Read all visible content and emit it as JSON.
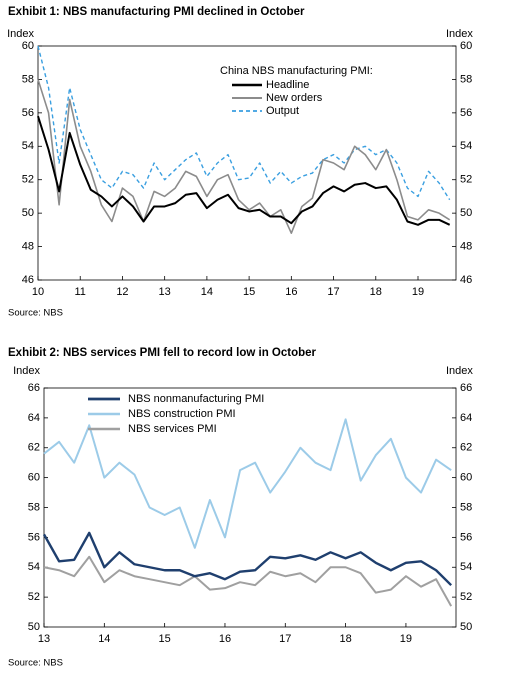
{
  "chart_data": [
    {
      "type": "line",
      "title": "Exhibit 1: NBS manufacturing PMI declined in October",
      "source": "Source: NBS",
      "y_label": "Index",
      "y2_label": "Index",
      "legend_title": "China NBS manufacturing PMI:",
      "x": [
        10,
        10.25,
        10.5,
        10.75,
        11,
        11.25,
        11.5,
        11.75,
        12,
        12.25,
        12.5,
        12.75,
        13,
        13.25,
        13.5,
        13.75,
        14,
        14.25,
        14.5,
        14.75,
        15,
        15.25,
        15.5,
        15.75,
        16,
        16.25,
        16.5,
        16.75,
        17,
        17.25,
        17.5,
        17.75,
        18,
        18.25,
        18.5,
        18.75,
        19,
        19.25,
        19.5,
        19.75
      ],
      "xlim": [
        10,
        19.9
      ],
      "xticks": [
        10,
        11,
        12,
        13,
        14,
        15,
        16,
        17,
        18,
        19
      ],
      "ylim": [
        46,
        60
      ],
      "yticks": [
        46,
        48,
        50,
        52,
        54,
        56,
        58,
        60
      ],
      "y2lim": [
        46,
        60
      ],
      "y2ticks": [
        46,
        48,
        50,
        52,
        54,
        56,
        58,
        60
      ],
      "series": [
        {
          "name": "Headline",
          "color": "#000000",
          "style": "solid",
          "values": [
            55.8,
            53.8,
            51.3,
            54.8,
            52.9,
            51.4,
            51.0,
            50.4,
            51.0,
            50.4,
            49.5,
            50.4,
            50.4,
            50.6,
            51.1,
            51.2,
            50.3,
            50.8,
            51.1,
            50.3,
            50.1,
            50.2,
            49.8,
            49.8,
            49.4,
            50.1,
            50.4,
            51.2,
            51.6,
            51.3,
            51.7,
            51.8,
            51.5,
            51.6,
            50.8,
            49.5,
            49.3,
            49.6,
            49.6,
            49.3
          ]
        },
        {
          "name": "New orders",
          "color": "#8c8c8c",
          "style": "solid",
          "values": [
            58.0,
            56.0,
            50.5,
            56.8,
            54.0,
            52.5,
            50.5,
            49.5,
            51.5,
            51.0,
            49.5,
            51.3,
            51.0,
            51.5,
            52.5,
            52.2,
            51.0,
            52.0,
            52.3,
            50.8,
            50.2,
            50.6,
            49.8,
            50.2,
            48.8,
            50.4,
            50.9,
            53.2,
            53.0,
            52.6,
            54.0,
            53.5,
            52.6,
            53.8,
            52.0,
            49.8,
            49.6,
            50.2,
            50.0,
            49.6
          ]
        },
        {
          "name": "Output",
          "color": "#3a9fe0",
          "style": "dashed",
          "values": [
            60.0,
            57.5,
            53.0,
            57.5,
            55.0,
            53.5,
            52.0,
            51.5,
            52.5,
            52.3,
            51.5,
            53.0,
            52.0,
            52.6,
            53.2,
            53.6,
            52.2,
            53.0,
            53.5,
            52.0,
            52.1,
            53.0,
            51.8,
            52.5,
            51.8,
            52.2,
            52.4,
            53.2,
            53.5,
            53.0,
            53.8,
            54.0,
            53.5,
            53.8,
            53.0,
            51.5,
            51.0,
            52.5,
            51.8,
            50.8
          ]
        }
      ]
    },
    {
      "type": "line",
      "title": "Exhibit 2: NBS services PMI fell to record low in October",
      "source": "Source: NBS",
      "y_label": "Index",
      "y2_label": "Index",
      "x": [
        13,
        13.25,
        13.5,
        13.75,
        14,
        14.25,
        14.5,
        14.75,
        15,
        15.25,
        15.5,
        15.75,
        16,
        16.25,
        16.5,
        16.75,
        17,
        17.25,
        17.5,
        17.75,
        18,
        18.25,
        18.5,
        18.75,
        19,
        19.25,
        19.5,
        19.75
      ],
      "xlim": [
        13,
        19.83
      ],
      "xticks": [
        13,
        14,
        15,
        16,
        17,
        18,
        19
      ],
      "ylim": [
        50,
        66
      ],
      "yticks": [
        50,
        52,
        54,
        56,
        58,
        60,
        62,
        64,
        66
      ],
      "y2lim": [
        50,
        66
      ],
      "y2ticks": [
        50,
        52,
        54,
        56,
        58,
        60,
        62,
        64,
        66
      ],
      "series": [
        {
          "name": "NBS nonmanufacturing PMI",
          "color": "#1f3f6e",
          "style": "solid",
          "values": [
            56.2,
            54.4,
            54.5,
            56.3,
            54.0,
            55.0,
            54.2,
            54.0,
            53.8,
            53.8,
            53.4,
            53.6,
            53.2,
            53.7,
            53.8,
            54.7,
            54.6,
            54.8,
            54.5,
            55.0,
            54.6,
            55.0,
            54.3,
            53.8,
            54.3,
            54.4,
            53.8,
            52.8
          ]
        },
        {
          "name": "NBS construction PMI",
          "color": "#9ccbe8",
          "style": "solid",
          "values": [
            61.6,
            62.4,
            61.0,
            63.5,
            60.0,
            61.0,
            60.2,
            58.0,
            57.5,
            58.0,
            55.3,
            58.5,
            56.0,
            60.5,
            61.0,
            59.0,
            60.4,
            62.0,
            61.0,
            60.5,
            63.9,
            59.8,
            61.5,
            62.6,
            60.0,
            59.0,
            61.2,
            60.5
          ]
        },
        {
          "name": "NBS services PMI",
          "color": "#a0a0a0",
          "style": "solid",
          "values": [
            54.0,
            53.8,
            53.4,
            54.7,
            53.0,
            53.8,
            53.4,
            53.2,
            53.0,
            52.8,
            53.4,
            52.5,
            52.6,
            53.0,
            52.8,
            53.7,
            53.4,
            53.6,
            53.0,
            54.0,
            54.0,
            53.6,
            52.3,
            52.5,
            53.4,
            52.7,
            53.2,
            51.4
          ]
        }
      ]
    }
  ]
}
